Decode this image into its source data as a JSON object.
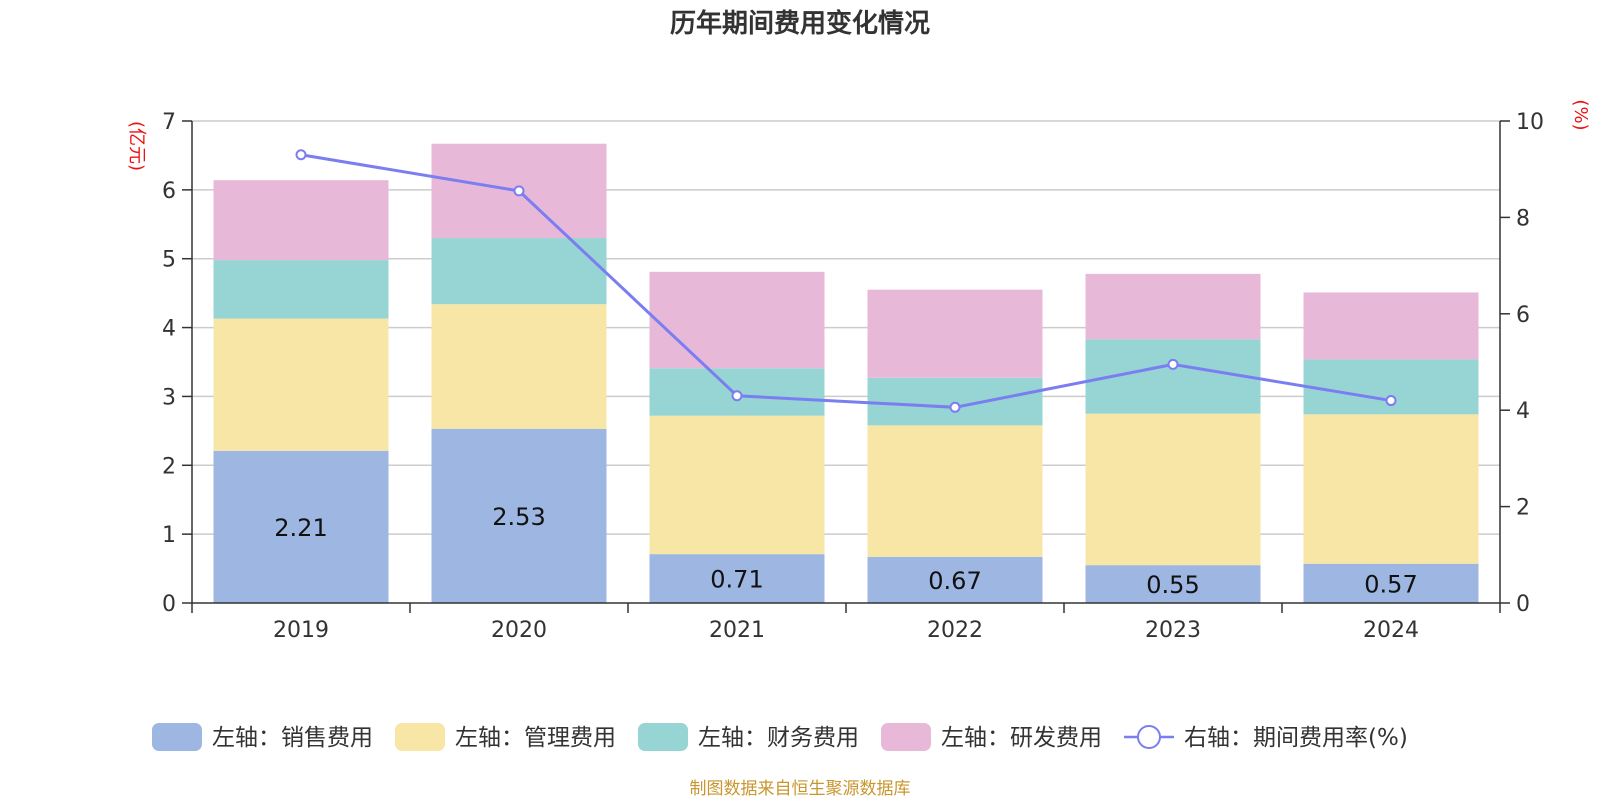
{
  "chart_data": {
    "type": "bar",
    "title": "历年期间费用变化情况",
    "categories": [
      "2019",
      "2020",
      "2021",
      "2022",
      "2023",
      "2024"
    ],
    "left_axis": {
      "unit": "(亿元)",
      "ylim": [
        0,
        7
      ],
      "ticks": [
        "0",
        "1",
        "2",
        "3",
        "4",
        "5",
        "6",
        "7"
      ]
    },
    "right_axis": {
      "unit": "(%)",
      "ylim": [
        0,
        10
      ],
      "ticks": [
        "0",
        "2",
        "4",
        "6",
        "8",
        "10"
      ]
    },
    "stacked": true,
    "series": [
      {
        "name": "左轴：销售费用",
        "axis": "left",
        "color": "#9db6e2",
        "values": [
          2.21,
          2.53,
          0.71,
          0.67,
          0.55,
          0.57
        ],
        "labels": [
          "2.21",
          "2.53",
          "0.71",
          "0.67",
          "0.55",
          "0.57"
        ]
      },
      {
        "name": "左轴：管理费用",
        "axis": "left",
        "color": "#f7e6a6",
        "values": [
          1.92,
          1.81,
          2.01,
          1.91,
          2.2,
          2.17
        ]
      },
      {
        "name": "左轴：财务费用",
        "axis": "left",
        "color": "#97d4d4",
        "values": [
          0.85,
          0.96,
          0.69,
          0.69,
          1.08,
          0.8
        ]
      },
      {
        "name": "左轴：研发费用",
        "axis": "left",
        "color": "#e8b8d8",
        "values": [
          1.16,
          1.37,
          1.4,
          1.28,
          0.95,
          0.97
        ]
      },
      {
        "name": "右轴：期间费用率(%)",
        "axis": "right",
        "type": "line",
        "color": "#7a7ef0",
        "values": [
          9.3,
          8.55,
          4.3,
          4.06,
          4.95,
          4.2
        ]
      }
    ],
    "grid": true,
    "legend_position": "bottom"
  },
  "source_note": "制图数据来自恒生聚源数据库"
}
